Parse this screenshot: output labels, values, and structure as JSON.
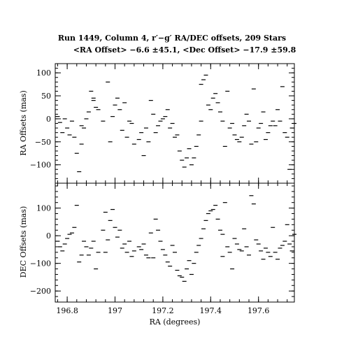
{
  "chart_data": {
    "type": "scatter",
    "title_line1": "Run 1449, Column 4, r′−g′ RA/DEC offsets, 209 Stars",
    "title_line2": "<RA Offset> −6.6 ±45.1,  <Dec Offset> −17.9 ±59.8",
    "xlabel": "RA (degrees)",
    "xlim": [
      196.75,
      197.75
    ],
    "xticks": [
      196.8,
      197,
      197.2,
      197.4,
      197.6
    ],
    "xtick_labels": [
      "196.8",
      "197",
      "197.2",
      "197.4",
      "197.6"
    ],
    "panels": [
      {
        "ylabel": "RA Offsets (mas)",
        "ylim": [
          -140,
          120
        ],
        "yticks": [
          -100,
          -50,
          0,
          50,
          100
        ],
        "ytick_labels": [
          "−100",
          "−50",
          "0",
          "50",
          "100"
        ],
        "points": [
          [
            196.76,
            5
          ],
          [
            196.77,
            -8
          ],
          [
            196.78,
            -30
          ],
          [
            196.79,
            0
          ],
          [
            196.8,
            -20
          ],
          [
            196.81,
            -35
          ],
          [
            196.82,
            -5
          ],
          [
            196.83,
            -40
          ],
          [
            196.84,
            -75
          ],
          [
            196.85,
            -115
          ],
          [
            196.86,
            -15
          ],
          [
            196.86,
            -55
          ],
          [
            196.87,
            -20
          ],
          [
            196.88,
            0
          ],
          [
            196.89,
            15
          ],
          [
            196.9,
            60
          ],
          [
            196.91,
            40
          ],
          [
            196.92,
            25
          ],
          [
            196.93,
            20
          ],
          [
            196.95,
            -5
          ],
          [
            196.98,
            -50
          ],
          [
            196.99,
            5
          ],
          [
            197.0,
            30
          ],
          [
            197.01,
            45
          ],
          [
            197.02,
            20
          ],
          [
            197.03,
            -25
          ],
          [
            197.04,
            35
          ],
          [
            197.05,
            -40
          ],
          [
            197.06,
            -5
          ],
          [
            197.07,
            -10
          ],
          [
            197.08,
            -55
          ],
          [
            197.1,
            -45
          ],
          [
            197.11,
            -30
          ],
          [
            197.12,
            -80
          ],
          [
            197.13,
            -20
          ],
          [
            197.14,
            -50
          ],
          [
            197.15,
            40
          ],
          [
            197.16,
            10
          ],
          [
            197.17,
            -30
          ],
          [
            197.18,
            -15
          ],
          [
            197.19,
            -5
          ],
          [
            197.2,
            0
          ],
          [
            197.21,
            5
          ],
          [
            197.22,
            20
          ],
          [
            197.23,
            -20
          ],
          [
            197.24,
            -10
          ],
          [
            197.25,
            -40
          ],
          [
            197.26,
            -35
          ],
          [
            197.27,
            -70
          ],
          [
            197.28,
            -90
          ],
          [
            197.29,
            -105
          ],
          [
            197.3,
            -85
          ],
          [
            197.31,
            -65
          ],
          [
            197.32,
            -100
          ],
          [
            197.33,
            -85
          ],
          [
            197.34,
            -60
          ],
          [
            197.35,
            -35
          ],
          [
            197.36,
            -5
          ],
          [
            197.37,
            85
          ],
          [
            197.38,
            95
          ],
          [
            197.39,
            30
          ],
          [
            197.4,
            20
          ],
          [
            197.41,
            45
          ],
          [
            197.42,
            55
          ],
          [
            197.43,
            35
          ],
          [
            197.44,
            15
          ],
          [
            197.45,
            -5
          ],
          [
            197.46,
            -60
          ],
          [
            197.47,
            60
          ],
          [
            197.48,
            -20
          ],
          [
            197.49,
            -10
          ],
          [
            197.5,
            -35
          ],
          [
            197.51,
            -45
          ],
          [
            197.52,
            -50
          ],
          [
            197.53,
            -40
          ],
          [
            197.54,
            -15
          ],
          [
            197.55,
            10
          ],
          [
            197.56,
            -5
          ],
          [
            197.57,
            -55
          ],
          [
            197.58,
            65
          ],
          [
            197.59,
            -50
          ],
          [
            197.6,
            -20
          ],
          [
            197.61,
            -10
          ],
          [
            197.62,
            15
          ],
          [
            197.63,
            -45
          ],
          [
            197.64,
            -30
          ],
          [
            197.65,
            -15
          ],
          [
            197.66,
            -5
          ],
          [
            197.67,
            -15
          ],
          [
            197.68,
            20
          ],
          [
            197.69,
            -5
          ],
          [
            197.7,
            70
          ],
          [
            197.71,
            -30
          ],
          [
            197.72,
            -40
          ],
          [
            197.73,
            -110
          ],
          [
            197.74,
            -20
          ],
          [
            197.75,
            -10
          ],
          [
            196.91,
            45
          ],
          [
            196.97,
            80
          ],
          [
            197.36,
            75
          ]
        ]
      },
      {
        "ylabel": "DEC Offsets (mas)",
        "ylim": [
          -240,
          190
        ],
        "yticks": [
          -200,
          -100,
          0,
          100
        ],
        "ytick_labels": [
          "−200",
          "−100",
          "0",
          "100"
        ],
        "points": [
          [
            196.76,
            -20
          ],
          [
            196.77,
            -40
          ],
          [
            196.78,
            -55
          ],
          [
            196.79,
            -30
          ],
          [
            196.8,
            -10
          ],
          [
            196.81,
            5
          ],
          [
            196.82,
            10
          ],
          [
            196.83,
            30
          ],
          [
            196.84,
            110
          ],
          [
            196.85,
            -95
          ],
          [
            196.86,
            -70
          ],
          [
            196.87,
            -20
          ],
          [
            196.88,
            -40
          ],
          [
            196.89,
            -70
          ],
          [
            196.9,
            -45
          ],
          [
            196.91,
            -20
          ],
          [
            196.92,
            -120
          ],
          [
            196.93,
            -60
          ],
          [
            196.95,
            20
          ],
          [
            196.96,
            85
          ],
          [
            196.97,
            -15
          ],
          [
            196.98,
            55
          ],
          [
            196.99,
            95
          ],
          [
            197.0,
            30
          ],
          [
            197.01,
            -5
          ],
          [
            197.02,
            20
          ],
          [
            197.03,
            -45
          ],
          [
            197.04,
            -30
          ],
          [
            197.05,
            -60
          ],
          [
            197.06,
            -20
          ],
          [
            197.07,
            -75
          ],
          [
            197.08,
            -55
          ],
          [
            197.1,
            -40
          ],
          [
            197.11,
            -50
          ],
          [
            197.12,
            -30
          ],
          [
            197.13,
            -70
          ],
          [
            197.14,
            -80
          ],
          [
            197.15,
            10
          ],
          [
            197.16,
            -80
          ],
          [
            197.17,
            60
          ],
          [
            197.18,
            20
          ],
          [
            197.19,
            -20
          ],
          [
            197.2,
            -50
          ],
          [
            197.21,
            -70
          ],
          [
            197.22,
            -95
          ],
          [
            197.23,
            -110
          ],
          [
            197.24,
            -35
          ],
          [
            197.25,
            -60
          ],
          [
            197.26,
            -125
          ],
          [
            197.27,
            -145
          ],
          [
            197.28,
            -150
          ],
          [
            197.29,
            -165
          ],
          [
            197.3,
            -120
          ],
          [
            197.31,
            -90
          ],
          [
            197.32,
            -140
          ],
          [
            197.33,
            -100
          ],
          [
            197.34,
            -60
          ],
          [
            197.35,
            -35
          ],
          [
            197.36,
            -10
          ],
          [
            197.37,
            25
          ],
          [
            197.38,
            55
          ],
          [
            197.39,
            80
          ],
          [
            197.4,
            90
          ],
          [
            197.41,
            95
          ],
          [
            197.42,
            110
          ],
          [
            197.43,
            60
          ],
          [
            197.44,
            20
          ],
          [
            197.45,
            5
          ],
          [
            197.46,
            120
          ],
          [
            197.47,
            -40
          ],
          [
            197.48,
            -60
          ],
          [
            197.49,
            -120
          ],
          [
            197.5,
            -10
          ],
          [
            197.51,
            -30
          ],
          [
            197.52,
            -50
          ],
          [
            197.53,
            -55
          ],
          [
            197.54,
            25
          ],
          [
            197.55,
            -40
          ],
          [
            197.56,
            -70
          ],
          [
            197.57,
            145
          ],
          [
            197.58,
            115
          ],
          [
            197.59,
            -15
          ],
          [
            197.6,
            -30
          ],
          [
            197.61,
            -55
          ],
          [
            197.62,
            -85
          ],
          [
            197.63,
            -45
          ],
          [
            197.64,
            -60
          ],
          [
            197.65,
            -75
          ],
          [
            197.66,
            30
          ],
          [
            197.67,
            -60
          ],
          [
            197.68,
            -85
          ],
          [
            197.69,
            -45
          ],
          [
            197.7,
            -35
          ],
          [
            197.71,
            -20
          ],
          [
            197.72,
            40
          ],
          [
            197.73,
            -30
          ],
          [
            197.74,
            -55
          ],
          [
            197.75,
            5
          ],
          [
            196.96,
            -60
          ],
          [
            197.45,
            -75
          ]
        ]
      }
    ]
  }
}
